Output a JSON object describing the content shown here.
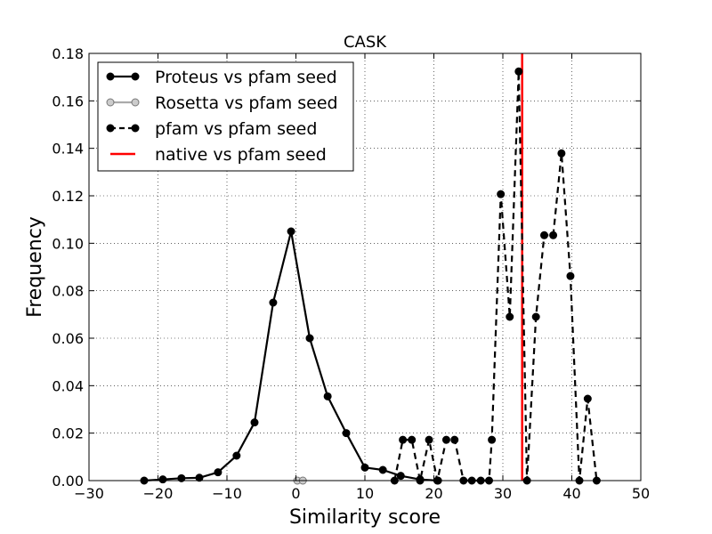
{
  "chart_data": {
    "type": "line",
    "title": "CASK",
    "xlabel": "Similarity score",
    "ylabel": "Frequency",
    "xlim": [
      -30,
      50
    ],
    "ylim": [
      0,
      0.18
    ],
    "xticks": [
      -30,
      -20,
      -10,
      0,
      10,
      20,
      30,
      40,
      50
    ],
    "yticks": [
      0.0,
      0.02,
      0.04,
      0.06,
      0.08,
      0.1,
      0.12,
      0.14,
      0.16,
      0.18
    ],
    "xtick_labels": [
      "−30",
      "−20",
      "−10",
      "0",
      "10",
      "20",
      "30",
      "40",
      "50"
    ],
    "ytick_labels": [
      "0.00",
      "0.02",
      "0.04",
      "0.06",
      "0.08",
      "0.10",
      "0.12",
      "0.14",
      "0.16",
      "0.18"
    ],
    "grid": true,
    "legend_position": "top-left",
    "series": [
      {
        "name": "Proteus vs pfam seed",
        "style": "solid",
        "color": "#000000",
        "marker_fill": "#000000",
        "x": [
          -22,
          -19.3,
          -16.6,
          -14,
          -11.3,
          -8.6,
          -6,
          -3.3,
          -0.7,
          2,
          4.6,
          7.3,
          10,
          12.6,
          15.2,
          18,
          20.6
        ],
        "y": [
          0.0,
          0.0005,
          0.001,
          0.0012,
          0.0035,
          0.0105,
          0.0245,
          0.075,
          0.105,
          0.06,
          0.0355,
          0.02,
          0.0055,
          0.0045,
          0.002,
          0.0005,
          0.0
        ]
      },
      {
        "name": "Rosetta vs pfam seed",
        "style": "solid",
        "color": "#aaaaaa",
        "marker_fill": "#cccccc",
        "x": [
          0.2,
          1.0
        ],
        "y": [
          0.0,
          0.0
        ]
      },
      {
        "name": "pfam vs pfam seed",
        "style": "dashed",
        "color": "#000000",
        "marker_fill": "#000000",
        "x": [
          14.3,
          15.5,
          16.8,
          18,
          19.3,
          20.5,
          21.8,
          23,
          24.3,
          25.5,
          26.8,
          28,
          28.4,
          29.7,
          31,
          32.3,
          33.5,
          34.8,
          36,
          37.3,
          38.5,
          39.8,
          41.1,
          42.3,
          43.6
        ],
        "y": [
          0.0,
          0.0172,
          0.0172,
          0.0,
          0.0172,
          0.0,
          0.0172,
          0.0172,
          0.0,
          0.0,
          0.0,
          0.0,
          0.0172,
          0.1207,
          0.069,
          0.1724,
          0.0,
          0.069,
          0.1034,
          0.1034,
          0.1379,
          0.0862,
          0.0,
          0.0345,
          0.0
        ]
      }
    ],
    "vlines": [
      {
        "name": "native vs pfam seed",
        "x": 32.8,
        "color": "#ff0000"
      }
    ]
  }
}
